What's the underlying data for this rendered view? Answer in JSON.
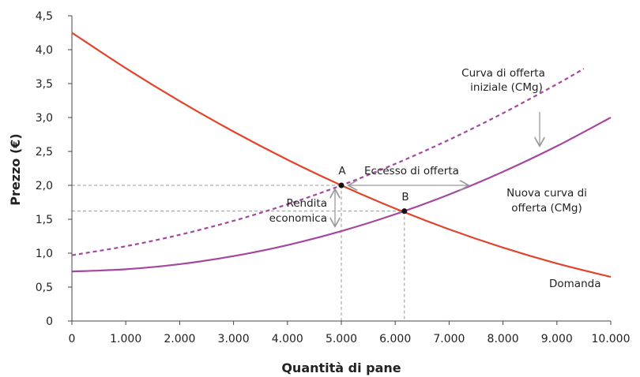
{
  "chart_data": {
    "type": "line",
    "title": "",
    "xlabel": "Quantità di pane",
    "ylabel": "Prezzo (€)",
    "xlim": [
      0,
      10000
    ],
    "ylim": [
      0,
      4.5
    ],
    "xticks": [
      0,
      1000,
      2000,
      3000,
      4000,
      5000,
      6000,
      7000,
      8000,
      9000,
      10000
    ],
    "xtick_labels": [
      "0",
      "1.000",
      "2.000",
      "3.000",
      "4.000",
      "5.000",
      "6.000",
      "7.000",
      "8.000",
      "9.000",
      "10.000"
    ],
    "yticks": [
      0,
      0.5,
      1,
      1.5,
      2,
      2.5,
      3,
      3.5,
      4,
      4.5
    ],
    "ytick_labels": [
      "0",
      "0,5",
      "1,0",
      "1,5",
      "2,0",
      "2,5",
      "3,0",
      "3,5",
      "4,0",
      "4,5"
    ],
    "grid": false,
    "series": [
      {
        "name": "Domanda",
        "color": "#e0452b",
        "style": "solid",
        "x": [
          0,
          1000,
          2000,
          3000,
          4000,
          5000,
          6000,
          7000,
          8000,
          9000,
          10000
        ],
        "y": [
          4.25,
          3.728,
          3.242,
          2.792,
          2.378,
          2.0,
          1.658,
          1.352,
          1.082,
          0.848,
          0.65
        ]
      },
      {
        "name": "Curva di offerta iniziale (CMg)",
        "color": "#a4479e",
        "style": "dashed",
        "x": [
          0,
          1000,
          2000,
          3000,
          4000,
          5000,
          6000,
          7000,
          8000,
          9000,
          9500
        ],
        "y": [
          0.97,
          1.102,
          1.271,
          1.477,
          1.72,
          2.0,
          2.317,
          2.672,
          3.064,
          3.492,
          3.72
        ]
      },
      {
        "name": "Nuova curva di offerta (CMg)",
        "color": "#a4479e",
        "style": "solid",
        "x": [
          0,
          1000,
          2000,
          3000,
          4000,
          5000,
          6000,
          7000,
          8000,
          9000,
          10000
        ],
        "y": [
          0.73,
          0.763,
          0.838,
          0.957,
          1.119,
          1.325,
          1.574,
          1.865,
          2.2,
          2.578,
          3.0
        ]
      }
    ],
    "points": [
      {
        "label": "A",
        "x": 5000,
        "y": 2.0
      },
      {
        "label": "B",
        "x": 6170,
        "y": 1.62
      }
    ],
    "annotations": {
      "excess": "Eccesso di offerta",
      "rent_1": "Rendita",
      "rent_2": "economica",
      "old_supply_1": "Curva di offerta",
      "old_supply_2": "iniziale (CMg)",
      "new_supply_1": "Nuova curva di",
      "new_supply_2": "offerta (CMg)",
      "demand": "Domanda"
    }
  }
}
